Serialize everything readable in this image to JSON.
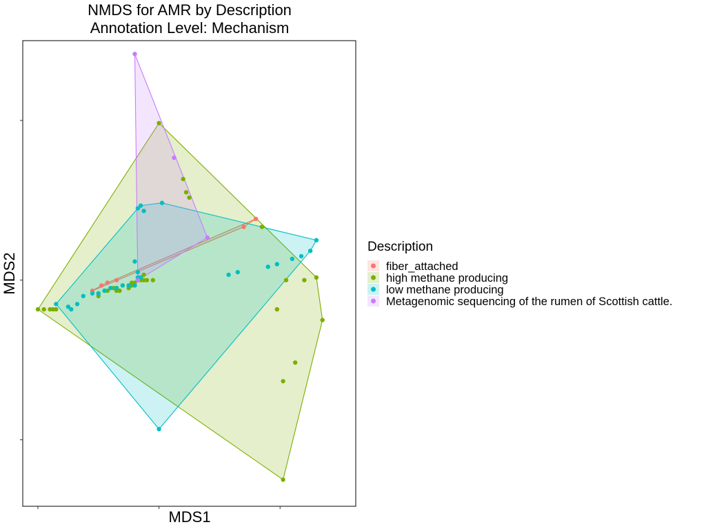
{
  "chart_data": {
    "type": "scatter",
    "title": "NMDS for AMR by Description",
    "subtitle": "Annotation Level: Mechanism",
    "xlabel": "MDS1",
    "ylabel": "MDS2",
    "xlim": [
      -0.45,
      0.65
    ],
    "ylim": [
      -0.85,
      0.9
    ],
    "grid": false,
    "tick_labels_shown": false,
    "legend": {
      "title": "Description",
      "position": "right"
    },
    "series": [
      {
        "name": "fiber_attached",
        "color": "#F8766D",
        "hull": true,
        "x": [
          0.32,
          0.28,
          -0.14,
          -0.17,
          -0.19,
          -0.22
        ],
        "y": [
          0.23,
          0.2,
          0.0,
          -0.01,
          -0.02,
          -0.04
        ]
      },
      {
        "name": "high methane producing",
        "color": "#7CAE00",
        "hull": true,
        "x": [
          -0.4,
          -0.38,
          -0.36,
          -0.35,
          -0.34,
          -0.2,
          -0.18,
          -0.17,
          -0.15,
          -0.14,
          -0.13,
          -0.12,
          -0.1,
          -0.09,
          -0.08,
          -0.06,
          -0.05,
          -0.2,
          -0.14,
          -0.1,
          -0.09,
          -0.04,
          -0.05,
          -0.02,
          0.0,
          0.08,
          0.09,
          0.1,
          0.34,
          0.39,
          0.42,
          0.48,
          0.52,
          0.54,
          0.41,
          0.41,
          0.45
        ],
        "y": [
          -0.11,
          -0.11,
          -0.11,
          -0.11,
          -0.11,
          -0.05,
          -0.04,
          -0.04,
          -0.03,
          -0.03,
          -0.04,
          -0.02,
          -0.02,
          -0.02,
          -0.01,
          0.0,
          0.0,
          -0.06,
          -0.04,
          -0.03,
          -0.01,
          0.0,
          0.02,
          0.0,
          0.59,
          0.38,
          0.33,
          0.31,
          0.2,
          -0.11,
          0.0,
          0.0,
          0.01,
          -0.15,
          -0.38,
          -0.75,
          -0.31
        ]
      },
      {
        "name": "low methane producing",
        "color": "#00BFC4",
        "hull": true,
        "x": [
          -0.34,
          -0.3,
          -0.29,
          -0.27,
          -0.25,
          -0.22,
          -0.2,
          -0.18,
          -0.16,
          -0.14,
          -0.12,
          -0.1,
          -0.08,
          -0.07,
          -0.06,
          -0.07,
          -0.06,
          -0.07,
          -0.05,
          0.01,
          -0.07,
          -0.08,
          0.23,
          0.26,
          0.36,
          0.39,
          0.44,
          0.47,
          0.5,
          0.52,
          0.0
        ],
        "y": [
          -0.09,
          -0.1,
          -0.11,
          -0.09,
          -0.06,
          -0.05,
          -0.05,
          -0.04,
          -0.03,
          -0.03,
          -0.02,
          -0.02,
          -0.02,
          0.0,
          0.01,
          0.03,
          0.28,
          0.27,
          0.26,
          0.29,
          0.01,
          0.07,
          0.02,
          0.03,
          0.05,
          0.06,
          0.08,
          0.09,
          0.11,
          0.15,
          -0.56
        ]
      },
      {
        "name": "Metagenomic sequencing of the rumen of Scottish cattle.",
        "color": "#C77CFF",
        "hull": true,
        "x": [
          -0.08,
          0.05,
          0.16,
          -0.07,
          -0.07
        ],
        "y": [
          0.85,
          0.46,
          0.16,
          0.0,
          0.0
        ]
      }
    ]
  }
}
